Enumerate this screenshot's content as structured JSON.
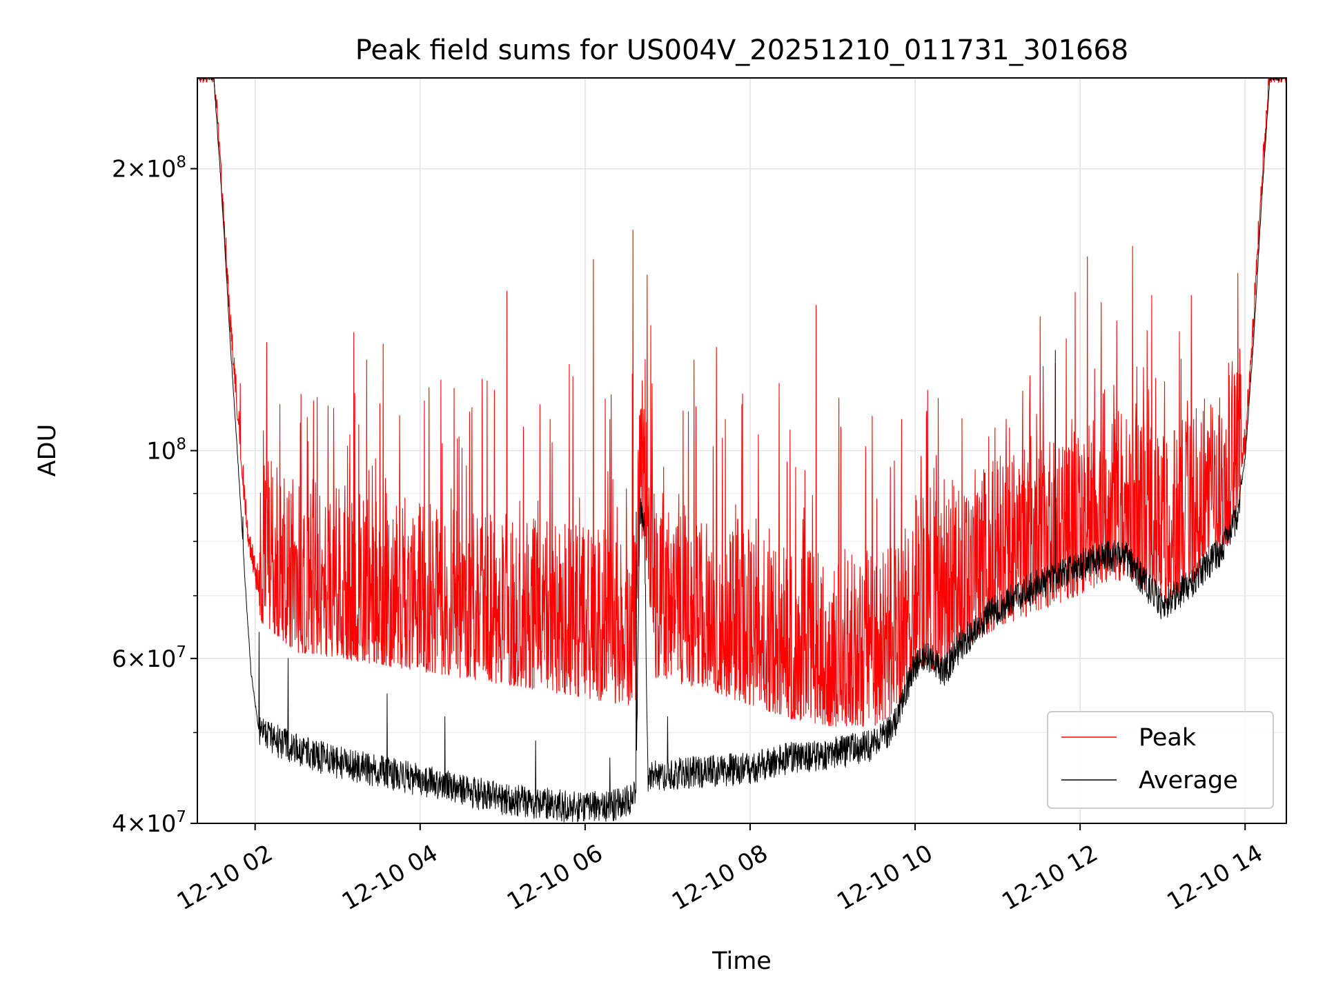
{
  "chart_data": {
    "type": "line",
    "title": "Peak field sums for US004V_20251210_011731_301668",
    "xlabel": "Time",
    "ylabel": "ADU",
    "yscale": "log",
    "ylim": [
      40000000,
      250000000
    ],
    "xlim_hours": [
      1.3,
      14.5
    ],
    "grid": true,
    "legend_location": "lower-right",
    "x_ticks": [
      {
        "hour": 2,
        "label": "12-10 02"
      },
      {
        "hour": 4,
        "label": "12-10 04"
      },
      {
        "hour": 6,
        "label": "12-10 06"
      },
      {
        "hour": 8,
        "label": "12-10 08"
      },
      {
        "hour": 10,
        "label": "12-10 10"
      },
      {
        "hour": 12,
        "label": "12-10 12"
      },
      {
        "hour": 14,
        "label": "12-10 14"
      }
    ],
    "y_ticks": [
      {
        "value": 40000000,
        "mant": "4",
        "exp": "7"
      },
      {
        "value": 60000000,
        "mant": "6",
        "exp": "7"
      },
      {
        "value": 100000000,
        "mant": "",
        "exp": "8"
      },
      {
        "value": 200000000,
        "mant": "2",
        "exp": "8"
      }
    ],
    "y_minor_ticks": [
      50000000,
      70000000,
      80000000,
      90000000
    ],
    "series": [
      {
        "name": "Peak",
        "color": "#ff0000",
        "base_points": [
          [
            1.3,
            250000000
          ],
          [
            1.5,
            250000000
          ],
          [
            1.6,
            185000000
          ],
          [
            1.7,
            135000000
          ],
          [
            1.8,
            105000000
          ],
          [
            1.9,
            82000000
          ],
          [
            2.0,
            72000000
          ],
          [
            2.5,
            66000000
          ],
          [
            3.0,
            65000000
          ],
          [
            3.5,
            64000000
          ],
          [
            4.0,
            63000000
          ],
          [
            4.5,
            62000000
          ],
          [
            5.0,
            61000000
          ],
          [
            5.5,
            60000000
          ],
          [
            6.0,
            59000000
          ],
          [
            6.45,
            58000000
          ],
          [
            6.62,
            58000000
          ],
          [
            6.66,
            86000000
          ],
          [
            6.75,
            82000000
          ],
          [
            6.85,
            62000000
          ],
          [
            7.5,
            60000000
          ],
          [
            8.0,
            58000000
          ],
          [
            8.5,
            56000000
          ],
          [
            9.0,
            55000000
          ],
          [
            9.5,
            55000000
          ],
          [
            9.8,
            57000000
          ],
          [
            10.0,
            64000000
          ],
          [
            10.3,
            63000000
          ],
          [
            10.6,
            67000000
          ],
          [
            11.0,
            70000000
          ],
          [
            11.5,
            73000000
          ],
          [
            12.0,
            76000000
          ],
          [
            12.4,
            79000000
          ],
          [
            12.7,
            78000000
          ],
          [
            13.0,
            74000000
          ],
          [
            13.4,
            79000000
          ],
          [
            13.8,
            86000000
          ],
          [
            14.0,
            100000000
          ],
          [
            14.1,
            135000000
          ],
          [
            14.2,
            190000000
          ],
          [
            14.3,
            250000000
          ],
          [
            14.5,
            250000000
          ]
        ],
        "spikes": [
          [
            1.82,
            118000000
          ],
          [
            2.1,
            105000000
          ],
          [
            2.3,
            112000000
          ],
          [
            2.55,
            107000000
          ],
          [
            2.75,
            114000000
          ],
          [
            2.95,
            111000000
          ],
          [
            3.15,
            104000000
          ],
          [
            3.35,
            125000000
          ],
          [
            3.55,
            130000000
          ],
          [
            3.75,
            109000000
          ],
          [
            4.05,
            113000000
          ],
          [
            4.25,
            119000000
          ],
          [
            4.45,
            103000000
          ],
          [
            4.6,
            110000000
          ],
          [
            4.9,
            116000000
          ],
          [
            5.05,
            148000000
          ],
          [
            5.25,
            106000000
          ],
          [
            5.45,
            112000000
          ],
          [
            5.6,
            102000000
          ],
          [
            5.85,
            120000000
          ],
          [
            6.1,
            160000000
          ],
          [
            6.3,
            108000000
          ],
          [
            6.58,
            172000000
          ],
          [
            6.7,
            101000000
          ],
          [
            6.95,
            96000000
          ],
          [
            7.25,
            110000000
          ],
          [
            7.55,
            101000000
          ],
          [
            7.7,
            108000000
          ],
          [
            7.9,
            112000000
          ],
          [
            8.1,
            104000000
          ],
          [
            8.35,
            118000000
          ],
          [
            8.55,
            96000000
          ],
          [
            8.8,
            143000000
          ],
          [
            9.1,
            106000000
          ],
          [
            9.4,
            101000000
          ],
          [
            9.7,
            96000000
          ],
          [
            10.15,
            116000000
          ],
          [
            10.45,
            93000000
          ],
          [
            10.8,
            88000000
          ],
          [
            11.1,
            99000000
          ],
          [
            11.3,
            100000000
          ],
          [
            11.7,
            124000000
          ],
          [
            11.9,
            108000000
          ],
          [
            12.25,
            113000000
          ],
          [
            12.6,
            104000000
          ],
          [
            12.95,
            101000000
          ],
          [
            13.3,
            113000000
          ],
          [
            13.6,
            104000000
          ],
          [
            13.8,
            124000000
          ]
        ],
        "noise": 0.22,
        "n_points": 3300
      },
      {
        "name": "Average",
        "color": "#000000",
        "base_points": [
          [
            1.3,
            250000000
          ],
          [
            1.5,
            250000000
          ],
          [
            1.6,
            185000000
          ],
          [
            1.7,
            130000000
          ],
          [
            1.8,
            95000000
          ],
          [
            1.88,
            72000000
          ],
          [
            1.95,
            58000000
          ],
          [
            2.05,
            50000000
          ],
          [
            2.5,
            48000000
          ],
          [
            3.0,
            46500000
          ],
          [
            3.5,
            45500000
          ],
          [
            4.0,
            44500000
          ],
          [
            4.5,
            43500000
          ],
          [
            5.0,
            42500000
          ],
          [
            5.5,
            42000000
          ],
          [
            6.0,
            41500000
          ],
          [
            6.45,
            42000000
          ],
          [
            6.62,
            43000000
          ],
          [
            6.66,
            86000000
          ],
          [
            6.72,
            84000000
          ],
          [
            6.76,
            45000000
          ],
          [
            7.5,
            45500000
          ],
          [
            8.0,
            45800000
          ],
          [
            8.5,
            47000000
          ],
          [
            9.0,
            47500000
          ],
          [
            9.5,
            48500000
          ],
          [
            9.75,
            51000000
          ],
          [
            10.0,
            59000000
          ],
          [
            10.15,
            60500000
          ],
          [
            10.35,
            58000000
          ],
          [
            10.55,
            62000000
          ],
          [
            10.9,
            67000000
          ],
          [
            11.3,
            70500000
          ],
          [
            11.7,
            73500000
          ],
          [
            12.0,
            75500000
          ],
          [
            12.3,
            77500000
          ],
          [
            12.55,
            77000000
          ],
          [
            12.8,
            72000000
          ],
          [
            13.0,
            68500000
          ],
          [
            13.3,
            71500000
          ],
          [
            13.7,
            78000000
          ],
          [
            13.9,
            85000000
          ],
          [
            14.0,
            98000000
          ],
          [
            14.1,
            130000000
          ],
          [
            14.2,
            185000000
          ],
          [
            14.3,
            250000000
          ],
          [
            14.5,
            250000000
          ]
        ],
        "spikes": [
          [
            1.85,
            85000000
          ],
          [
            2.05,
            64000000
          ],
          [
            2.4,
            60000000
          ],
          [
            3.6,
            55000000
          ],
          [
            4.3,
            52000000
          ],
          [
            5.4,
            49000000
          ],
          [
            6.3,
            47000000
          ],
          [
            6.62,
            86000000
          ],
          [
            7.0,
            52000000
          ],
          [
            11.7,
            128000000
          ],
          [
            9.9,
            58000000
          ]
        ],
        "noise": 0.04,
        "n_points": 3300
      }
    ]
  }
}
